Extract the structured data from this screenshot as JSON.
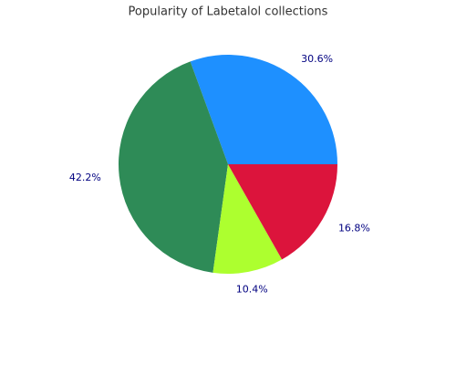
{
  "chart_data": {
    "type": "pie",
    "title": "Popularity of Labetalol collections",
    "values": [
      30.6,
      42.2,
      10.4,
      16.8
    ],
    "value_labels": [
      "30.6%",
      "42.2%",
      "10.4%",
      "16.8%"
    ],
    "colors": [
      "#1e90ff",
      "#2e8b57",
      "#adff2f",
      "#dc143c"
    ]
  }
}
